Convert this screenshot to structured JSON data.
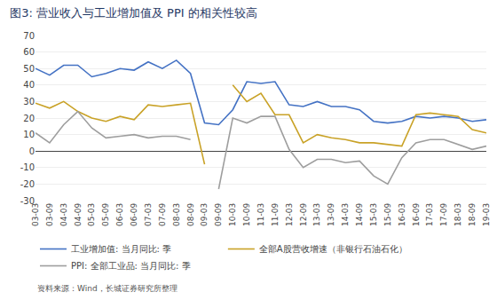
{
  "chart_data": {
    "type": "line",
    "title": "图3: 营业收入与工业增加值及 PPI 的相关性较高",
    "annotations": [
      "资料来源：Wind，长城证券研究所整理"
    ],
    "categories": [
      "03-03",
      "03-09",
      "04-03",
      "04-09",
      "05-03",
      "05-09",
      "06-03",
      "06-09",
      "07-03",
      "07-09",
      "08-03",
      "08-09",
      "09-03",
      "09-09",
      "10-03",
      "10-09",
      "11-03",
      "11-09",
      "12-03",
      "12-09",
      "13-03",
      "13-09",
      "14-03",
      "14-09",
      "15-03",
      "15-09",
      "16-03",
      "16-09",
      "17-03",
      "17-09",
      "18-03",
      "18-09",
      "19-03"
    ],
    "series": [
      {
        "name": "工业增加值: 当月同比: 季",
        "color": "#4472C4",
        "values": [
          50,
          46,
          52,
          52,
          45,
          47,
          50,
          49,
          54,
          50,
          55,
          47,
          17,
          16,
          25,
          42,
          41,
          42,
          28,
          27,
          30,
          27,
          27,
          25,
          18,
          17,
          18,
          21,
          20,
          21,
          20,
          18,
          19
        ]
      },
      {
        "name": "全部A股营收增速（非银行石油石化）",
        "color": "#C9A227",
        "values": [
          29,
          26,
          30,
          24,
          20,
          18,
          21,
          19,
          28,
          27,
          28,
          29,
          -8,
          null,
          40,
          30,
          35,
          22,
          22,
          5,
          10,
          8,
          7,
          5,
          5,
          4,
          3,
          22,
          23,
          22,
          21,
          13,
          11
        ]
      },
      {
        "name": "PPI: 全部工业品: 当月同比: 季",
        "color": "#9E9E9E",
        "values": [
          11,
          5,
          16,
          24,
          14,
          8,
          9,
          10,
          8,
          9,
          9,
          7,
          null,
          -23,
          20,
          17,
          21,
          21,
          1,
          -10,
          -5,
          -5,
          -7,
          -6,
          -15,
          -20,
          -4,
          5,
          7,
          7,
          4,
          1,
          3
        ]
      }
    ],
    "ylim": [
      -30,
      70
    ],
    "yticks": [
      -30,
      -20,
      -10,
      0,
      10,
      20,
      30,
      40,
      50,
      60,
      70
    ],
    "grid": true,
    "legend": "bottom"
  }
}
